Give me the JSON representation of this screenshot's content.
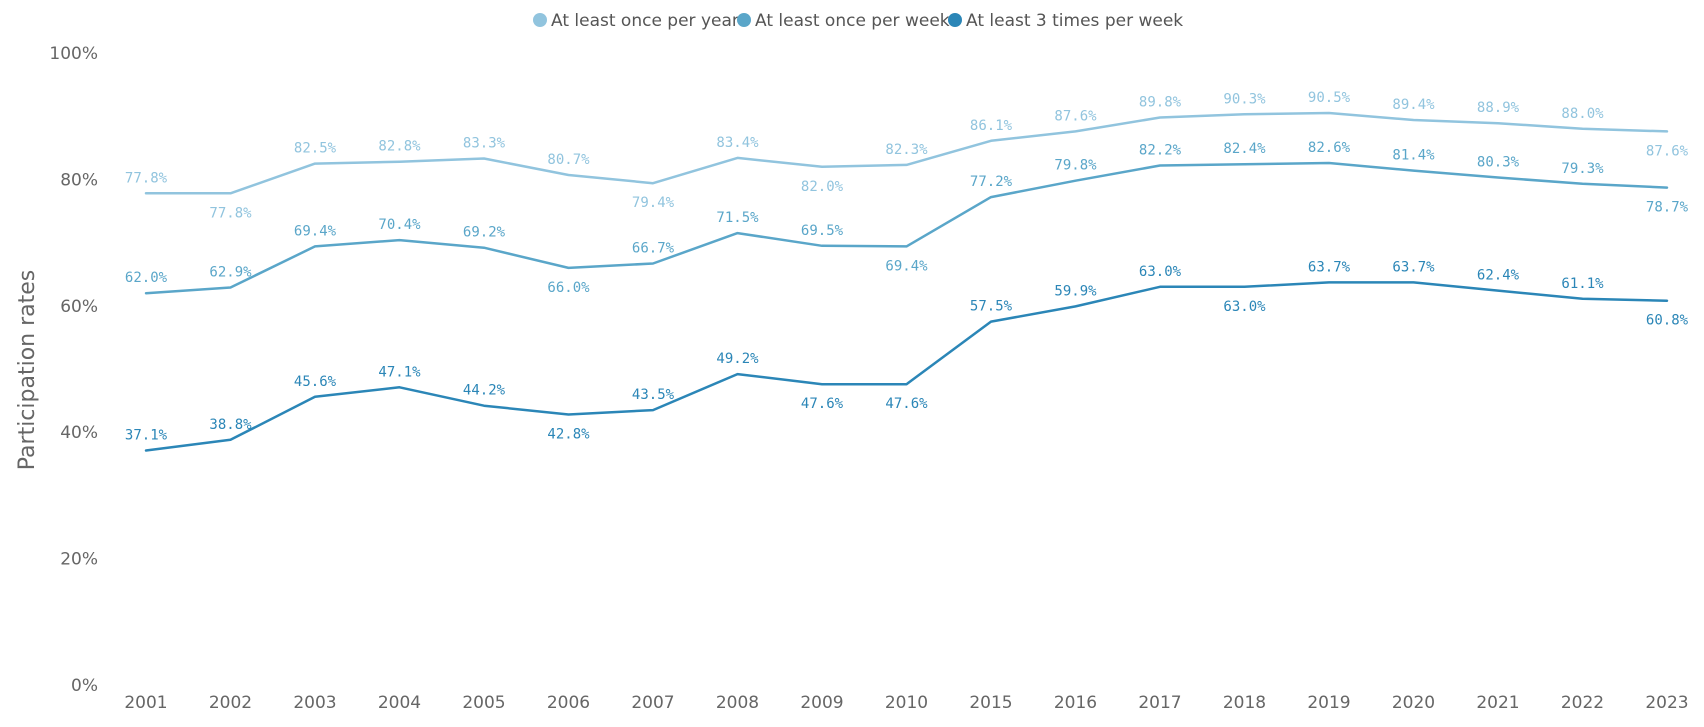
{
  "chart_data": {
    "type": "line",
    "ylabel": "Participation rates",
    "ylim": [
      0,
      100
    ],
    "yticks": [
      "0%",
      "20%",
      "40%",
      "60%",
      "80%",
      "100%"
    ],
    "categories": [
      "2001",
      "2002",
      "2003",
      "2004",
      "2005",
      "2006",
      "2007",
      "2008",
      "2009",
      "2010",
      "2015",
      "2016",
      "2017",
      "2018",
      "2019",
      "2020",
      "2021",
      "2022",
      "2023"
    ],
    "legend_position": "top-center",
    "grid": false,
    "series": [
      {
        "name": "At least once per year",
        "color": "#91c4de",
        "values": [
          77.8,
          77.8,
          82.5,
          82.8,
          83.3,
          80.7,
          79.4,
          83.4,
          82.0,
          82.3,
          86.1,
          87.6,
          89.8,
          90.3,
          90.5,
          89.4,
          88.9,
          88.0,
          87.6
        ],
        "labels": [
          "77.8%",
          "77.8%",
          "82.5%",
          "82.8%",
          "83.3%",
          "80.7%",
          "79.4%",
          "83.4%",
          "82.0%",
          "82.3%",
          "86.1%",
          "87.6%",
          "89.8%",
          "90.3%",
          "90.5%",
          "89.4%",
          "88.9%",
          "88.0%",
          "87.6%"
        ]
      },
      {
        "name": "At least once per week",
        "color": "#5aa6c9",
        "values": [
          62.0,
          62.9,
          69.4,
          70.4,
          69.2,
          66.0,
          66.7,
          71.5,
          69.5,
          69.4,
          77.2,
          79.8,
          82.2,
          82.4,
          82.6,
          81.4,
          80.3,
          79.3,
          78.7
        ],
        "labels": [
          "62.0%",
          "62.9%",
          "69.4%",
          "70.4%",
          "69.2%",
          "66.0%",
          "66.7%",
          "71.5%",
          "69.5%",
          "69.4%",
          "77.2%",
          "79.8%",
          "82.2%",
          "82.4%",
          "82.6%",
          "81.4%",
          "80.3%",
          "79.3%",
          "78.7%"
        ]
      },
      {
        "name": "At least 3 times per week",
        "color": "#2b86b7",
        "values": [
          37.1,
          38.8,
          45.6,
          47.1,
          44.2,
          42.8,
          43.5,
          49.2,
          47.6,
          47.6,
          57.5,
          59.9,
          63.0,
          63.0,
          63.7,
          63.7,
          62.4,
          61.1,
          60.8
        ],
        "labels": [
          "37.1%",
          "38.8%",
          "45.6%",
          "47.1%",
          "44.2%",
          "42.8%",
          "43.5%",
          "49.2%",
          "47.6%",
          "47.6%",
          "57.5%",
          "59.9%",
          "63.0%",
          "63.0%",
          "63.7%",
          "63.7%",
          "62.4%",
          "61.1%",
          "60.8%"
        ]
      }
    ]
  }
}
